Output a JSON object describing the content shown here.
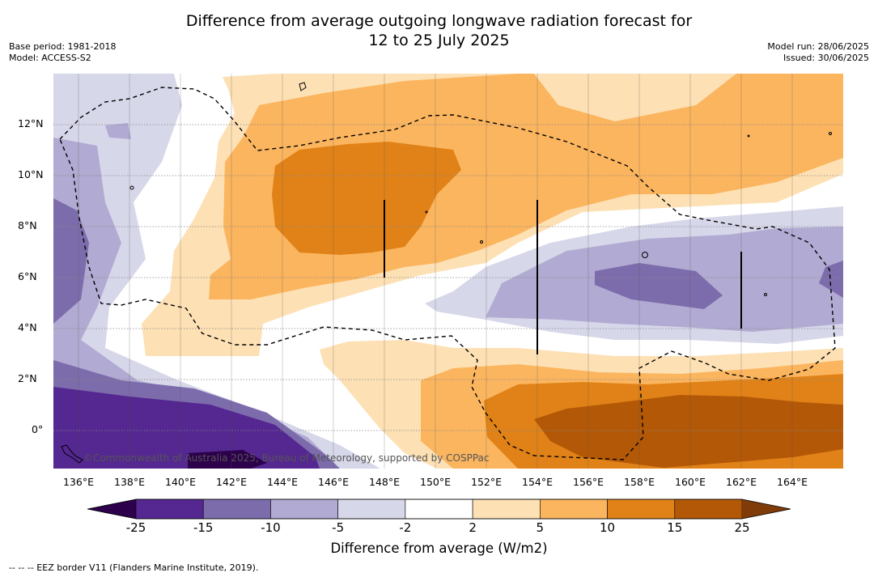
{
  "title_line1": "Difference from average outgoing longwave radiation forecast for",
  "title_line2": "12 to 25 July 2025",
  "meta_left": [
    "Base period: 1981-2018",
    "Model: ACCESS-S2"
  ],
  "meta_right": [
    "Model run: 28/06/2025",
    "Issued: 30/06/2025"
  ],
  "lat_labels": [
    "12°N",
    "10°N",
    "8°N",
    "6°N",
    "4°N",
    "2°N",
    "0°"
  ],
  "lon_labels": [
    "136°E",
    "138°E",
    "140°E",
    "142°E",
    "144°E",
    "146°E",
    "148°E",
    "150°E",
    "152°E",
    "154°E",
    "156°E",
    "158°E",
    "160°E",
    "162°E",
    "164°E"
  ],
  "copyright": "©Commonwealth of Australia 2025, Bureau of Meteorology, supported by COSPPac",
  "colorbar": {
    "ticks": [
      "-25",
      "-15",
      "-10",
      "-5",
      "-2",
      "2",
      "5",
      "10",
      "15",
      "25"
    ],
    "colors": [
      "#542791",
      "#7d6cab",
      "#b1aad2",
      "#d7d7ea",
      "#ffffff",
      "#fde0b4",
      "#fbb55f",
      "#e08218",
      "#b35807"
    ],
    "under_color": "#2d004b",
    "over_color": "#7f3b08",
    "label": "Difference from average (W/m2)"
  },
  "footnote": "--  --  -- EEZ border V11 (Flanders Marine Institute, 2019)."
}
